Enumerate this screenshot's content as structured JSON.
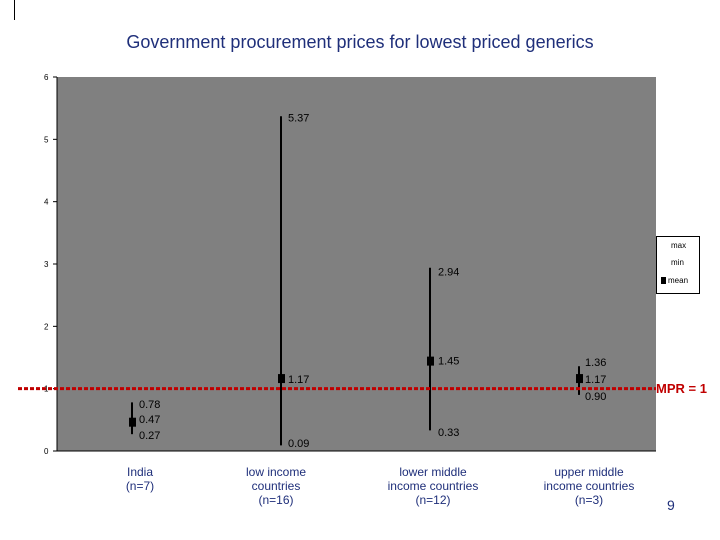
{
  "chart_data": {
    "type": "error-bar",
    "title": "Government procurement prices for lowest priced generics",
    "xlabel": "",
    "ylabel": "",
    "ylim": [
      0,
      6
    ],
    "yticks": [
      0,
      1,
      2,
      3,
      4,
      5,
      6
    ],
    "grid": false,
    "legend": {
      "placement": "right",
      "entries": [
        "max",
        "min",
        "mean"
      ]
    },
    "categories": [
      "India\n(n=7)",
      "low income\ncountries\n(n=16)",
      "lower middle\nincome countries\n(n=12)",
      "upper middle\nincome countries\n(n=3)"
    ],
    "series": [
      {
        "name": "max",
        "values": [
          0.78,
          5.37,
          2.94,
          1.36
        ]
      },
      {
        "name": "min",
        "values": [
          0.27,
          0.09,
          0.33,
          0.9
        ]
      },
      {
        "name": "mean",
        "values": [
          0.47,
          1.17,
          1.45,
          1.17
        ]
      }
    ],
    "data_labels": {
      "max": [
        "0.78",
        "5.37",
        "2.94",
        "1.36"
      ],
      "min": [
        "0.27",
        "0.09",
        "0.33",
        "0.90"
      ],
      "mean": [
        "0.47",
        "1.17",
        "1.45",
        "1.17"
      ]
    },
    "reference_line": {
      "value": 1,
      "label": "MPR = 1",
      "color": "#c00000"
    },
    "colors": {
      "plot_bg": "#808080",
      "marks": "#000000",
      "category_text": "#1f2f7a"
    }
  },
  "page": {
    "number": "9"
  }
}
